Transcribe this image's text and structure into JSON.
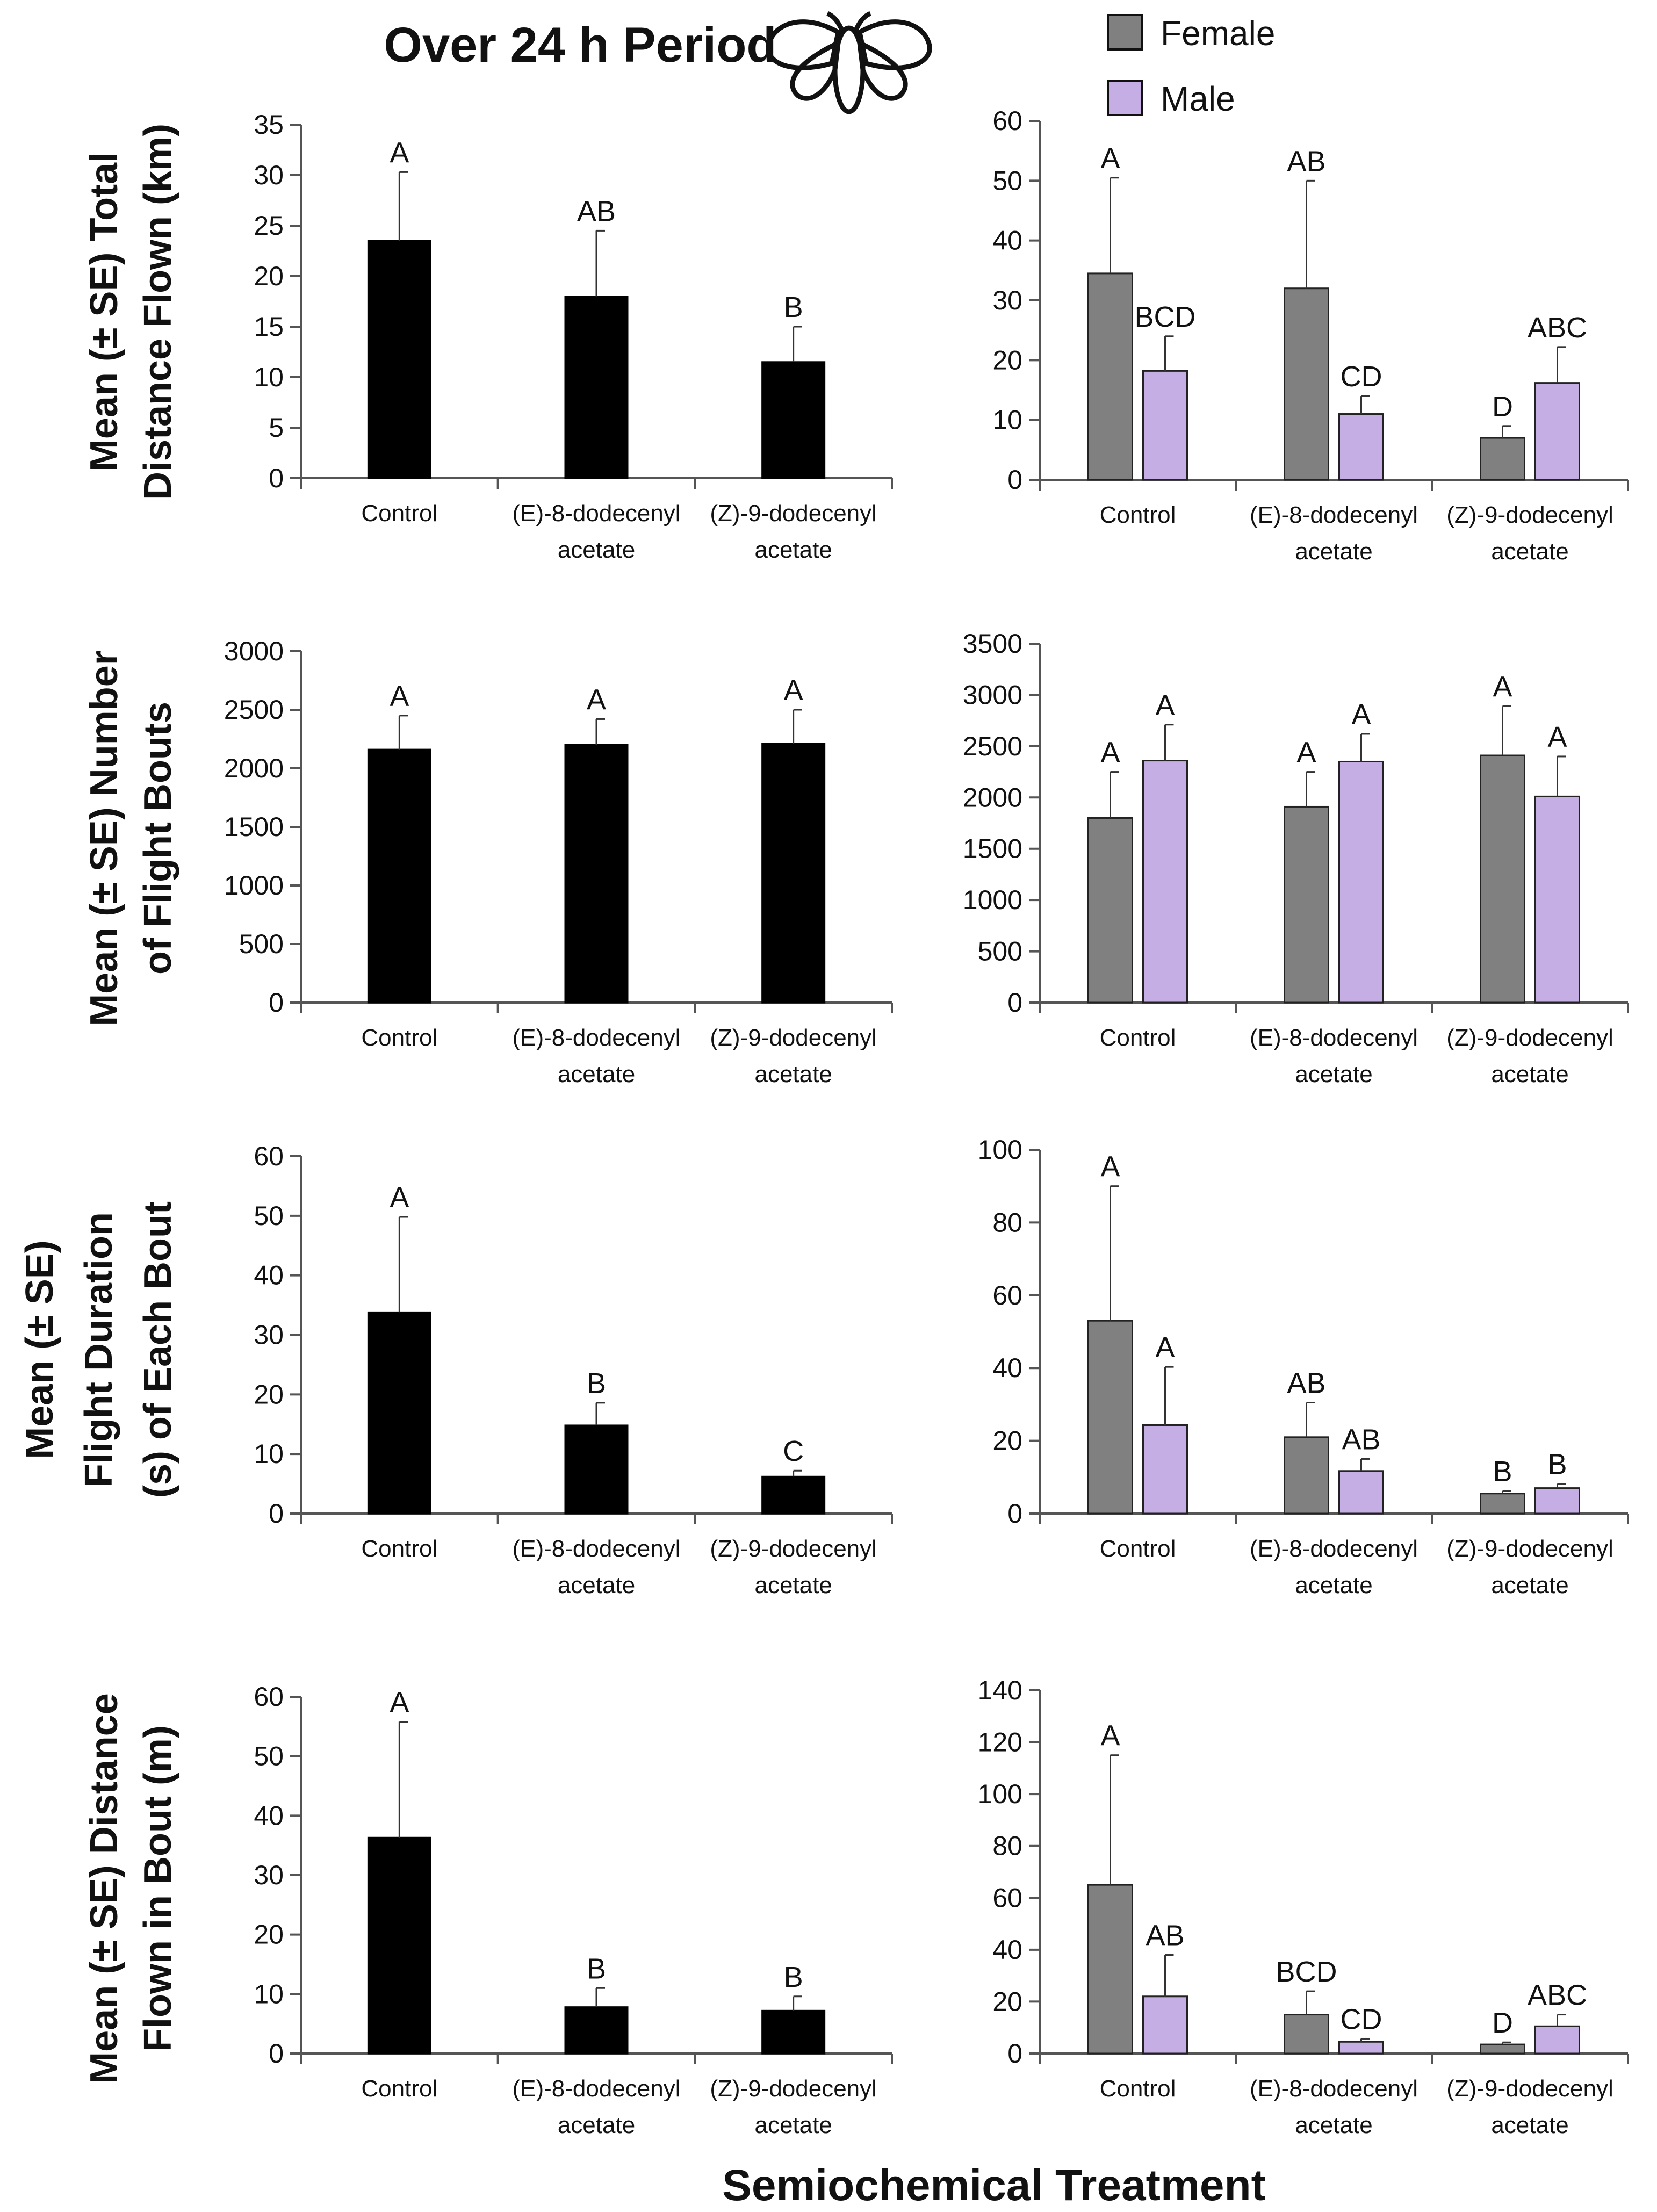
{
  "title": "Over 24 h Period",
  "xlabel": "Semiochemical Treatment",
  "legend": [
    {
      "name": "Female",
      "color": "#808080"
    },
    {
      "name": "Male",
      "color": "#c4aee4"
    }
  ],
  "colors": {
    "combined": "#000000",
    "female": "#808080",
    "male": "#c4aee4",
    "axis": "#555555"
  },
  "icon": "moth-icon",
  "row_ylabels": [
    [
      "Mean (± SE) Total",
      "Distance Flown (km)"
    ],
    [
      "Mean (± SE) Number",
      "of Flight Bouts"
    ],
    [
      "Mean (± SE)",
      "Flight Duration",
      "(s) of Each Bout"
    ],
    [
      "Mean (± SE) Distance",
      "Flown in Bout (m)"
    ]
  ],
  "chart_data": [
    {
      "type": "bar",
      "categories": [
        [
          "Control"
        ],
        [
          "(E)-8-dodecenyl",
          "acetate"
        ],
        [
          "(Z)-9-dodecenyl",
          "acetate"
        ]
      ],
      "series": [
        {
          "name": "All",
          "values": [
            23.5,
            18,
            11.5
          ],
          "errors": [
            6.8,
            6.5,
            3.5
          ],
          "letters": [
            "A",
            "AB",
            "B"
          ]
        }
      ],
      "ylim": [
        0,
        35
      ],
      "yticks": [
        0,
        5,
        10,
        15,
        20,
        25,
        30,
        35
      ]
    },
    {
      "type": "bar",
      "categories": [
        [
          "Control"
        ],
        [
          "(E)-8-dodecenyl",
          "acetate"
        ],
        [
          "(Z)-9-dodecenyl",
          "acetate"
        ]
      ],
      "series": [
        {
          "name": "Female",
          "values": [
            34.5,
            32,
            7
          ],
          "errors": [
            16,
            18,
            2
          ],
          "letters": [
            "A",
            "AB",
            "D"
          ]
        },
        {
          "name": "Male",
          "values": [
            18.2,
            11,
            16.2
          ],
          "errors": [
            5.8,
            3,
            6
          ],
          "letters": [
            "BCD",
            "CD",
            "ABC"
          ]
        }
      ],
      "ylim": [
        0,
        60
      ],
      "yticks": [
        0,
        10,
        20,
        30,
        40,
        50,
        60
      ]
    },
    {
      "type": "bar",
      "categories": [
        [
          "Control"
        ],
        [
          "(E)-8-dodecenyl",
          "acetate"
        ],
        [
          "(Z)-9-dodecenyl",
          "acetate"
        ]
      ],
      "series": [
        {
          "name": "All",
          "values": [
            2160,
            2200,
            2210
          ],
          "errors": [
            290,
            220,
            290
          ],
          "letters": [
            "A",
            "A",
            "A"
          ]
        }
      ],
      "ylim": [
        0,
        3000
      ],
      "yticks": [
        0,
        500,
        1000,
        1500,
        2000,
        2500,
        3000
      ]
    },
    {
      "type": "bar",
      "categories": [
        [
          "Control"
        ],
        [
          "(E)-8-dodecenyl",
          "acetate"
        ],
        [
          "(Z)-9-dodecenyl",
          "acetate"
        ]
      ],
      "series": [
        {
          "name": "Female",
          "values": [
            1800,
            1910,
            2410
          ],
          "errors": [
            450,
            340,
            480
          ],
          "letters": [
            "A",
            "A",
            "A"
          ]
        },
        {
          "name": "Male",
          "values": [
            2360,
            2350,
            2010
          ],
          "errors": [
            350,
            270,
            390
          ],
          "letters": [
            "A",
            "A",
            "A"
          ]
        }
      ],
      "ylim": [
        0,
        3500
      ],
      "yticks": [
        0,
        500,
        1000,
        1500,
        2000,
        2500,
        3000,
        3500
      ]
    },
    {
      "type": "bar",
      "categories": [
        [
          "Control"
        ],
        [
          "(E)-8-dodecenyl",
          "acetate"
        ],
        [
          "(Z)-9-dodecenyl",
          "acetate"
        ]
      ],
      "series": [
        {
          "name": "All",
          "values": [
            33.8,
            14.8,
            6.2
          ],
          "errors": [
            16,
            3.8,
            1
          ],
          "letters": [
            "A",
            "B",
            "C"
          ]
        }
      ],
      "ylim": [
        0,
        60
      ],
      "yticks": [
        0,
        10,
        20,
        30,
        40,
        50,
        60
      ]
    },
    {
      "type": "bar",
      "categories": [
        [
          "Control"
        ],
        [
          "(E)-8-dodecenyl",
          "acetate"
        ],
        [
          "(Z)-9-dodecenyl",
          "acetate"
        ]
      ],
      "series": [
        {
          "name": "Female",
          "values": [
            53,
            21,
            5.5
          ],
          "errors": [
            37,
            9.5,
            0.7
          ],
          "letters": [
            "A",
            "AB",
            "B"
          ]
        },
        {
          "name": "Male",
          "values": [
            24.3,
            11.7,
            7
          ],
          "errors": [
            16,
            3.3,
            1.2
          ],
          "letters": [
            "A",
            "AB",
            "B"
          ]
        }
      ],
      "ylim": [
        0,
        100
      ],
      "yticks": [
        0,
        20,
        40,
        60,
        80,
        100
      ]
    },
    {
      "type": "bar",
      "categories": [
        [
          "Control"
        ],
        [
          "(E)-8-dodecenyl",
          "acetate"
        ],
        [
          "(Z)-9-dodecenyl",
          "acetate"
        ]
      ],
      "series": [
        {
          "name": "All",
          "values": [
            36.3,
            7.8,
            7.2
          ],
          "errors": [
            19.5,
            3.2,
            2.4
          ],
          "letters": [
            "A",
            "B",
            "B"
          ]
        }
      ],
      "ylim": [
        0,
        60
      ],
      "yticks": [
        0,
        10,
        20,
        30,
        40,
        50,
        60
      ]
    },
    {
      "type": "bar",
      "categories": [
        [
          "Control"
        ],
        [
          "(E)-8-dodecenyl",
          "acetate"
        ],
        [
          "(Z)-9-dodecenyl",
          "acetate"
        ]
      ],
      "series": [
        {
          "name": "Female",
          "values": [
            65,
            15,
            3.5
          ],
          "errors": [
            50,
            9,
            0.8
          ],
          "letters": [
            "A",
            "BCD",
            "D"
          ]
        },
        {
          "name": "Male",
          "values": [
            22,
            4.5,
            10.5
          ],
          "errors": [
            16,
            1.2,
            4.5
          ],
          "letters": [
            "AB",
            "CD",
            "ABC"
          ]
        }
      ],
      "ylim": [
        0,
        140
      ],
      "yticks": [
        0,
        20,
        40,
        60,
        80,
        100,
        120,
        140
      ]
    }
  ]
}
